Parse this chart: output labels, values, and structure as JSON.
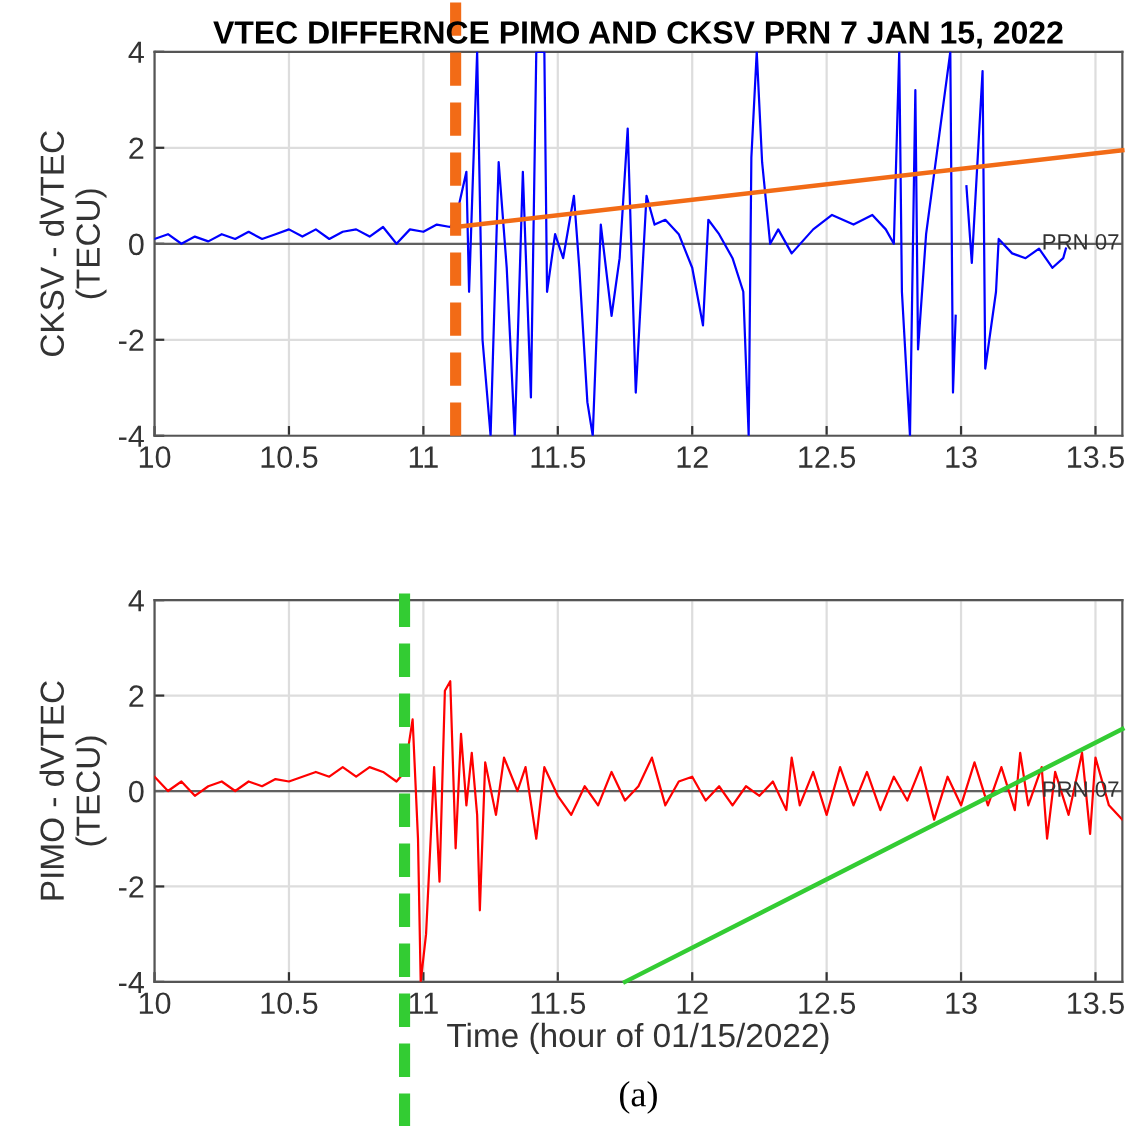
{
  "chart_data": [
    {
      "type": "line",
      "title": "VTEC DIFFERNCE PIMO AND CKSV PRN 7 JAN 15, 2022",
      "ylabel": "CKSV - dVTEC\n(TECU)",
      "xlim": [
        10,
        13.6
      ],
      "ylim": [
        -4,
        4
      ],
      "xticks": [
        10,
        10.5,
        11,
        11.5,
        12,
        12.5,
        13,
        13.5
      ],
      "yticks": [
        -4,
        -2,
        0,
        2,
        4
      ],
      "grid": true,
      "line_style": "solid",
      "series": [
        {
          "color": "#0000ff",
          "x": [
            10.0,
            10.05,
            10.1,
            10.15,
            10.2,
            10.25,
            10.3,
            10.35,
            10.4,
            10.45,
            10.5,
            10.55,
            10.6,
            10.65,
            10.7,
            10.75,
            10.8,
            10.85,
            10.9,
            10.95,
            11.0,
            11.05,
            11.1,
            11.12,
            11.16,
            11.17,
            11.2,
            11.22,
            11.25,
            11.28,
            11.31,
            11.34,
            11.37,
            11.4,
            11.42,
            11.45,
            11.46,
            11.49,
            11.52,
            11.56,
            11.58,
            11.61,
            11.63,
            11.66,
            11.7,
            11.73,
            11.76,
            11.79,
            11.83,
            11.86,
            11.9,
            11.95,
            12.0,
            12.04,
            12.06,
            12.1,
            12.15,
            12.19,
            12.21,
            12.22,
            12.24,
            12.26,
            12.29,
            12.32,
            12.37,
            12.45,
            12.52,
            12.6,
            12.67,
            12.72,
            12.75,
            12.77,
            12.78,
            12.81,
            12.83,
            12.84,
            12.87,
            12.96,
            12.97,
            12.98,
            13.0,
            13.02,
            13.04,
            13.08,
            13.09,
            13.13,
            13.14,
            13.19,
            13.24,
            13.29,
            13.34,
            13.38,
            13.39
          ],
          "values": [
            0.1,
            0.2,
            0.0,
            0.15,
            0.05,
            0.2,
            0.1,
            0.25,
            0.1,
            0.2,
            0.3,
            0.15,
            0.3,
            0.1,
            0.25,
            0.3,
            0.15,
            0.35,
            0.0,
            0.3,
            0.25,
            0.4,
            0.35,
            0.5,
            1.5,
            -1.0,
            4,
            -2.0,
            -4,
            1.7,
            -0.5,
            -4,
            1.5,
            -3.2,
            4,
            4,
            -1.0,
            0.2,
            -0.3,
            1.0,
            -0.5,
            -3.3,
            -4,
            0.4,
            -1.5,
            -0.3,
            2.4,
            -3.1,
            1.0,
            0.4,
            0.5,
            0.2,
            -0.5,
            -1.7,
            0.5,
            0.2,
            -0.3,
            -1.0,
            -4,
            1.8,
            4,
            1.7,
            0.0,
            0.3,
            -0.2,
            0.3,
            0.6,
            0.4,
            0.6,
            0.3,
            0.0,
            4,
            -1.0,
            -4,
            3.2,
            -2.2,
            0.2,
            4,
            -3.1,
            -1.5,
            null,
            1.2,
            -0.4,
            3.6,
            -2.6,
            -1.0,
            0.1,
            -0.2,
            -0.3,
            -0.1,
            -0.5,
            -0.3,
            -0.1
          ]
        },
        {
          "color": "#f26b16",
          "x": [
            11.12,
            13.6
          ],
          "values": [
            0.35,
            1.95
          ]
        }
      ],
      "ref_lines": [
        {
          "axis": "y",
          "value": 0,
          "color": "#606060",
          "line_style": "solid"
        },
        {
          "axis": "x",
          "value": 11.12,
          "color": "#f26b16",
          "line_style": "dashed"
        }
      ],
      "annotations": [
        {
          "text": "PRN 07",
          "x": 13.3,
          "y": 0
        }
      ]
    },
    {
      "type": "line",
      "xlabel": "Time (hour of 01/15/2022)",
      "ylabel": "PIMO - dVTEC\n(TECU)",
      "xlim": [
        10,
        13.6
      ],
      "ylim": [
        -4,
        4
      ],
      "xticks": [
        10,
        10.5,
        11,
        11.5,
        12,
        12.5,
        13,
        13.5
      ],
      "yticks": [
        -4,
        -2,
        0,
        2,
        4
      ],
      "grid": true,
      "line_style": "solid",
      "series": [
        {
          "color": "#ff0000",
          "x": [
            10.0,
            10.05,
            10.1,
            10.15,
            10.2,
            10.25,
            10.3,
            10.35,
            10.4,
            10.45,
            10.5,
            10.55,
            10.6,
            10.65,
            10.7,
            10.75,
            10.8,
            10.85,
            10.9,
            10.93,
            10.96,
            10.98,
            10.99,
            11.01,
            11.04,
            11.06,
            11.08,
            11.1,
            11.12,
            11.14,
            11.16,
            11.18,
            11.2,
            11.21,
            11.23,
            11.27,
            11.3,
            11.35,
            11.38,
            11.42,
            11.45,
            11.5,
            11.55,
            11.6,
            11.65,
            11.7,
            11.75,
            11.8,
            11.85,
            11.9,
            11.95,
            12.0,
            12.05,
            12.1,
            12.15,
            12.2,
            12.25,
            12.3,
            12.35,
            12.37,
            12.4,
            12.45,
            12.5,
            12.55,
            12.6,
            12.65,
            12.7,
            12.75,
            12.8,
            12.85,
            12.9,
            12.95,
            13.0,
            13.05,
            13.1,
            13.15,
            13.2,
            13.22,
            13.25,
            13.3,
            13.32,
            13.35,
            13.4,
            13.45,
            13.48,
            13.5,
            13.55,
            13.6
          ],
          "values": [
            0.3,
            0.0,
            0.2,
            -0.1,
            0.1,
            0.2,
            0.0,
            0.2,
            0.1,
            0.25,
            0.2,
            0.3,
            0.4,
            0.3,
            0.5,
            0.3,
            0.5,
            0.4,
            0.2,
            0.4,
            1.5,
            -1.0,
            -4,
            -3.0,
            0.5,
            -1.9,
            2.1,
            2.3,
            -1.2,
            1.2,
            -0.3,
            0.8,
            -0.5,
            -2.5,
            0.6,
            -0.5,
            0.7,
            0.0,
            0.5,
            -1.0,
            0.5,
            -0.1,
            -0.5,
            0.1,
            -0.3,
            0.4,
            -0.2,
            0.1,
            0.7,
            -0.3,
            0.2,
            0.3,
            -0.2,
            0.1,
            -0.3,
            0.1,
            -0.1,
            0.2,
            -0.4,
            0.7,
            -0.3,
            0.4,
            -0.5,
            0.5,
            -0.3,
            0.4,
            -0.4,
            0.3,
            -0.2,
            0.5,
            -0.6,
            0.3,
            -0.3,
            0.6,
            -0.3,
            0.5,
            -0.4,
            0.8,
            -0.3,
            0.5,
            -1.0,
            0.4,
            -0.5,
            0.8,
            -0.9,
            0.7,
            -0.3,
            -0.6
          ]
        },
        {
          "color": "#33cc33",
          "x": [
            11.75,
            13.6
          ],
          "values": [
            -4,
            1.3
          ]
        }
      ],
      "ref_lines": [
        {
          "axis": "y",
          "value": 0,
          "color": "#606060",
          "line_style": "solid"
        },
        {
          "axis": "x",
          "value": 10.93,
          "color": "#33cc33",
          "line_style": "dashed"
        }
      ],
      "annotations": [
        {
          "text": "PRN 07",
          "x": 13.3,
          "y": 0
        },
        "(a)"
      ]
    }
  ]
}
